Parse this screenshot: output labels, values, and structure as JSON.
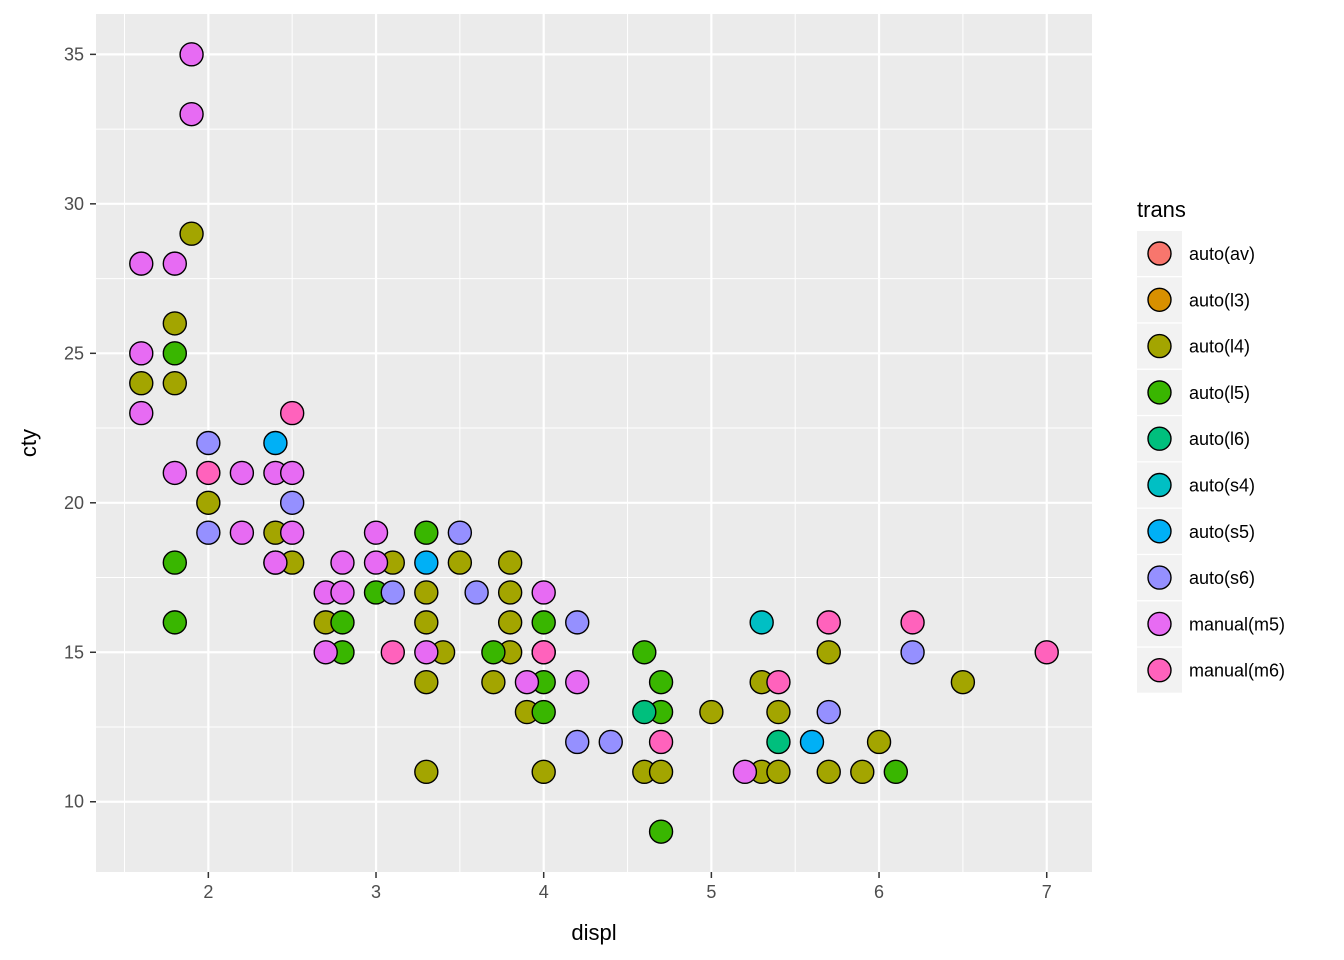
{
  "chart_data": {
    "type": "scatter",
    "xlabel": "displ",
    "ylabel": "cty",
    "xlim": [
      1.33,
      7.27
    ],
    "ylim": [
      7.65,
      36.35
    ],
    "x_ticks": [
      2,
      3,
      4,
      5,
      6,
      7
    ],
    "y_ticks": [
      10,
      15,
      20,
      25,
      30,
      35
    ],
    "grid": true,
    "legend": {
      "title": "trans",
      "placement": "right",
      "entries": [
        "auto(av)",
        "auto(l3)",
        "auto(l4)",
        "auto(l5)",
        "auto(l6)",
        "auto(s4)",
        "auto(s5)",
        "auto(s6)",
        "manual(m5)",
        "manual(m6)"
      ]
    },
    "colors": {
      "auto(av)": "#F8766D",
      "auto(l3)": "#D89000",
      "auto(l4)": "#A3A500",
      "auto(l5)": "#39B600",
      "auto(l6)": "#00BF7D",
      "auto(s4)": "#00BFC4",
      "auto(s5)": "#00B0F6",
      "auto(s6)": "#9590FF",
      "manual(m5)": "#E76BF3",
      "manual(m6)": "#FF62BC"
    },
    "series": [
      {
        "name": "auto(l4)",
        "points": [
          [
            1.6,
            24
          ],
          [
            1.8,
            24
          ],
          [
            1.8,
            26
          ],
          [
            1.9,
            29
          ],
          [
            2.0,
            20
          ],
          [
            2.4,
            19
          ],
          [
            2.4,
            18
          ],
          [
            2.5,
            18
          ],
          [
            2.7,
            16
          ],
          [
            3.1,
            18
          ],
          [
            3.3,
            17
          ],
          [
            3.3,
            16
          ],
          [
            3.3,
            14
          ],
          [
            3.3,
            11
          ],
          [
            3.4,
            15
          ],
          [
            3.5,
            18
          ],
          [
            3.7,
            14
          ],
          [
            3.8,
            18
          ],
          [
            3.8,
            17
          ],
          [
            3.8,
            16
          ],
          [
            3.8,
            15
          ],
          [
            3.9,
            13
          ],
          [
            4.0,
            11
          ],
          [
            4.6,
            11
          ],
          [
            4.7,
            11
          ],
          [
            5.0,
            13
          ],
          [
            5.3,
            14
          ],
          [
            5.3,
            11
          ],
          [
            5.4,
            13
          ],
          [
            5.4,
            11
          ],
          [
            5.7,
            15
          ],
          [
            5.7,
            11
          ],
          [
            5.9,
            11
          ],
          [
            6.0,
            12
          ],
          [
            6.5,
            14
          ]
        ]
      },
      {
        "name": "auto(l5)",
        "points": [
          [
            1.8,
            25
          ],
          [
            1.8,
            18
          ],
          [
            1.8,
            16
          ],
          [
            2.8,
            16
          ],
          [
            2.8,
            15
          ],
          [
            3.0,
            17
          ],
          [
            3.3,
            19
          ],
          [
            3.7,
            15
          ],
          [
            4.0,
            16
          ],
          [
            4.0,
            14
          ],
          [
            4.0,
            13
          ],
          [
            4.6,
            15
          ],
          [
            4.7,
            14
          ],
          [
            4.7,
            13
          ],
          [
            4.7,
            9
          ],
          [
            6.1,
            11
          ]
        ]
      },
      {
        "name": "auto(l6)",
        "points": [
          [
            4.6,
            13
          ],
          [
            5.4,
            12
          ]
        ]
      },
      {
        "name": "auto(s4)",
        "points": [
          [
            5.3,
            16
          ]
        ]
      },
      {
        "name": "auto(s5)",
        "points": [
          [
            2.4,
            22
          ],
          [
            3.3,
            18
          ],
          [
            5.6,
            12
          ]
        ]
      },
      {
        "name": "auto(s6)",
        "points": [
          [
            2.0,
            22
          ],
          [
            2.0,
            19
          ],
          [
            2.5,
            20
          ],
          [
            3.1,
            17
          ],
          [
            3.5,
            19
          ],
          [
            3.6,
            17
          ],
          [
            4.2,
            16
          ],
          [
            4.2,
            12
          ],
          [
            4.4,
            12
          ],
          [
            5.7,
            13
          ],
          [
            6.2,
            15
          ]
        ]
      },
      {
        "name": "manual(m5)",
        "points": [
          [
            1.6,
            28
          ],
          [
            1.6,
            25
          ],
          [
            1.6,
            23
          ],
          [
            1.8,
            28
          ],
          [
            1.8,
            21
          ],
          [
            1.9,
            35
          ],
          [
            1.9,
            33
          ],
          [
            2.2,
            21
          ],
          [
            2.2,
            19
          ],
          [
            2.4,
            21
          ],
          [
            2.4,
            18
          ],
          [
            2.5,
            21
          ],
          [
            2.5,
            19
          ],
          [
            2.7,
            17
          ],
          [
            2.7,
            15
          ],
          [
            2.8,
            18
          ],
          [
            2.8,
            17
          ],
          [
            3.0,
            19
          ],
          [
            3.0,
            18
          ],
          [
            3.3,
            15
          ],
          [
            3.9,
            14
          ],
          [
            4.0,
            17
          ],
          [
            4.0,
            15
          ],
          [
            4.2,
            14
          ],
          [
            5.2,
            11
          ]
        ]
      },
      {
        "name": "manual(m6)",
        "points": [
          [
            2.0,
            21
          ],
          [
            2.5,
            23
          ],
          [
            3.1,
            15
          ],
          [
            4.0,
            15
          ],
          [
            4.7,
            12
          ],
          [
            5.4,
            14
          ],
          [
            5.7,
            16
          ],
          [
            6.2,
            16
          ],
          [
            7.0,
            15
          ]
        ]
      }
    ]
  }
}
